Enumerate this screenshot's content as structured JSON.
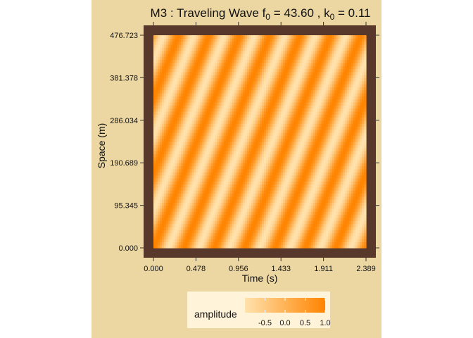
{
  "chart_data": {
    "type": "heatmap",
    "title": {
      "prefix": "M3 : Traveling Wave  f",
      "f_sub": "0",
      "f_rest": " = 43.60 , k",
      "k_sub": "0",
      "k_rest": " = 0.11"
    },
    "xlabel": "Time (s)",
    "ylabel": "Space (m)",
    "x_ticks": [
      "0.000",
      "0.478",
      "0.956",
      "1.433",
      "1.911",
      "2.389"
    ],
    "y_ticks": [
      "0.000",
      "95.345",
      "190.689",
      "286.034",
      "381.378",
      "476.723"
    ],
    "xlim": [
      0,
      2.389
    ],
    "ylim": [
      0,
      476.723
    ],
    "f0": 43.6,
    "k0": 0.11,
    "stripes_across_time_axis": 7,
    "legend": {
      "title": "amplitude",
      "ticks": [
        "-0.5",
        "0.0",
        "0.5",
        "1.0"
      ],
      "range": [
        -1.0,
        1.0
      ]
    },
    "colors": {
      "low": "#ffe2ad",
      "high": "#ff8400",
      "frame": "#57382a",
      "background": "#ecd7a3",
      "legend_box": "#fff3da"
    }
  }
}
